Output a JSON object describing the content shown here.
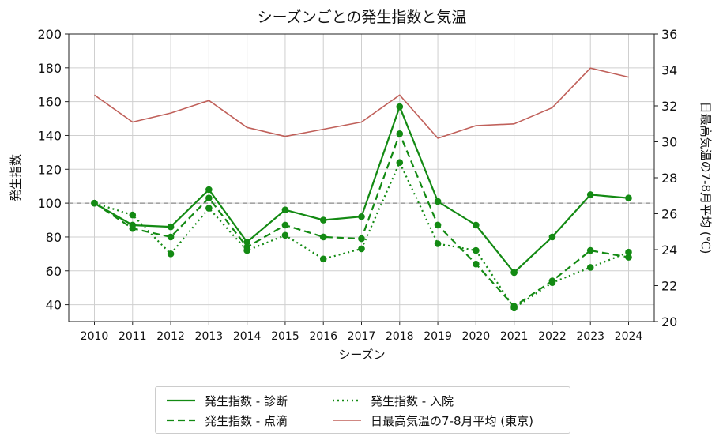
{
  "chart_data": {
    "type": "line",
    "title": "シーズンごとの発生指数と気温",
    "xlabel": "シーズン",
    "ylabel_left": "発生指数",
    "ylabel_right": "日最高気温の7-8月平均 (℃)",
    "x": [
      "2010",
      "2011",
      "2012",
      "2013",
      "2014",
      "2015",
      "2016",
      "2017",
      "2018",
      "2019",
      "2020",
      "2021",
      "2022",
      "2023",
      "2024"
    ],
    "ylim_left": [
      30,
      200
    ],
    "yticks_left": [
      "40",
      "60",
      "80",
      "100",
      "120",
      "140",
      "160",
      "180",
      "200"
    ],
    "ylim_right": [
      20,
      36
    ],
    "yticks_right": [
      "20",
      "22",
      "24",
      "26",
      "28",
      "30",
      "32",
      "34",
      "36"
    ],
    "reference_line_left": 100,
    "grid": true,
    "legend_position": "bottom",
    "series": [
      {
        "name": "発生指数 - 診断",
        "axis": "left",
        "style": "solid",
        "markers": true,
        "color": "#138a13",
        "values": [
          100,
          87,
          86,
          108,
          77,
          96,
          90,
          92,
          157,
          101,
          87,
          59,
          80,
          105,
          103
        ]
      },
      {
        "name": "発生指数 - 点滴",
        "axis": "left",
        "style": "dashed",
        "markers": true,
        "color": "#138a13",
        "values": [
          100,
          85,
          80,
          103,
          74,
          87,
          80,
          79,
          141,
          87,
          64,
          39,
          54,
          72,
          68
        ]
      },
      {
        "name": "発生指数 - 入院",
        "axis": "left",
        "style": "dotted",
        "markers": true,
        "color": "#138a13",
        "values": [
          100,
          93,
          70,
          97,
          72,
          81,
          67,
          73,
          124,
          76,
          72,
          38,
          53,
          62,
          71
        ]
      },
      {
        "name": "日最高気温の7-8月平均 (東京)",
        "axis": "right",
        "style": "solid",
        "markers": false,
        "color": "#c0605a",
        "values": [
          32.6,
          31.1,
          31.6,
          32.3,
          30.8,
          30.3,
          30.7,
          31.1,
          32.6,
          30.2,
          30.9,
          31.0,
          31.9,
          34.1,
          33.6
        ]
      }
    ]
  }
}
